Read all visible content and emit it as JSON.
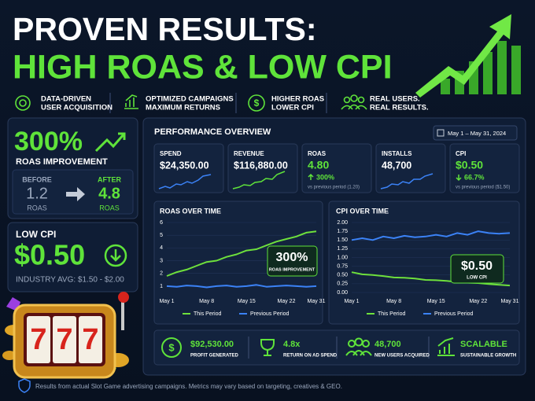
{
  "header": {
    "line1": "PROVEN RESULTS:",
    "line2": "HIGH ROAS & LOW CPI"
  },
  "features": [
    {
      "line1": "DATA-DRIVEN",
      "line2": "USER ACQUISITION"
    },
    {
      "line1": "OPTIMIZED CAMPAIGNS",
      "line2": "MAXIMUM RETURNS"
    },
    {
      "line1": "HIGHER ROAS",
      "line2": "LOWER CPI"
    },
    {
      "line1": "REAL USERS.",
      "line2": "REAL RESULTS."
    }
  ],
  "roas_card": {
    "value": "300%",
    "label": "ROAS IMPROVEMENT",
    "before_label": "BEFORE",
    "before_value": "1.2",
    "before_unit": "ROAS",
    "after_label": "AFTER",
    "after_value": "4.8",
    "after_unit": "ROAS"
  },
  "cpi_card": {
    "title": "LOW CPI",
    "value": "$0.50",
    "note": "INDUSTRY AVG: $1.50 - $2.00"
  },
  "dashboard": {
    "title": "PERFORMANCE OVERVIEW",
    "date_range": "May 1 – May 31, 2024",
    "kpis": [
      {
        "label": "SPEND",
        "value": "$24,350.00"
      },
      {
        "label": "REVENUE",
        "value": "$116,880.00"
      },
      {
        "label": "ROAS",
        "value": "4.80",
        "change": "300%",
        "note": "vs previous period (1.20)"
      },
      {
        "label": "INSTALLS",
        "value": "48,700"
      },
      {
        "label": "CPI",
        "value": "$0.50",
        "change": "66.7%",
        "note": "vs previous period ($1.50)"
      }
    ],
    "summary": [
      {
        "value": "$92,530.00",
        "label": "PROFIT GENERATED"
      },
      {
        "value": "4.8x",
        "label": "RETURN ON AD SPEND"
      },
      {
        "value": "48,700",
        "label": "NEW USERS ACQUIRED"
      },
      {
        "value": "SCALABLE",
        "label": "SUSTAINABLE GROWTH"
      }
    ]
  },
  "chart_data": [
    {
      "type": "line",
      "title": "ROAS OVER TIME",
      "categories": [
        "May 1",
        null,
        null,
        null,
        "May 8",
        null,
        null,
        null,
        "May 15",
        null,
        null,
        null,
        "May 22",
        null,
        null,
        "May 31"
      ],
      "series": [
        {
          "name": "This Period",
          "color": "#6ee03c",
          "values": [
            1.8,
            2.1,
            2.3,
            2.6,
            2.9,
            3.0,
            3.3,
            3.5,
            3.8,
            3.9,
            4.2,
            4.5,
            4.7,
            4.9,
            5.2,
            5.3
          ]
        },
        {
          "name": "Previous Period",
          "color": "#3b82f6",
          "values": [
            1.0,
            0.95,
            1.05,
            1.0,
            0.9,
            1.0,
            1.05,
            0.95,
            1.0,
            1.1,
            0.95,
            1.0,
            1.05,
            1.0,
            0.95,
            1.0
          ]
        }
      ],
      "ylim": [
        0.5,
        6
      ],
      "yticks": [
        1,
        2,
        3,
        4,
        5,
        6
      ],
      "grid": true,
      "annotation": {
        "value": "300%",
        "label": "ROAS IMPROVEMENT"
      }
    },
    {
      "type": "line",
      "title": "CPI OVER TIME",
      "categories": [
        "May 1",
        null,
        null,
        null,
        "May 8",
        null,
        null,
        null,
        "May 15",
        null,
        null,
        null,
        "May 22",
        null,
        null,
        "May 31"
      ],
      "series": [
        {
          "name": "This Period",
          "color": "#6ee03c",
          "values": [
            0.58,
            0.52,
            0.5,
            0.47,
            0.43,
            0.42,
            0.4,
            0.36,
            0.35,
            0.33,
            0.3,
            0.28,
            0.27,
            0.24,
            0.22,
            0.2
          ]
        },
        {
          "name": "Previous Period",
          "color": "#3b82f6",
          "values": [
            1.5,
            1.55,
            1.5,
            1.6,
            1.55,
            1.62,
            1.58,
            1.6,
            1.65,
            1.6,
            1.7,
            1.65,
            1.75,
            1.7,
            1.68,
            1.7
          ]
        }
      ],
      "ylim": [
        0,
        2
      ],
      "yticks": [
        {
          "value": 0,
          "label": "0.00"
        },
        {
          "value": 0.25,
          "label": "0.25"
        },
        {
          "value": 0.5,
          "label": "0.50"
        },
        {
          "value": 0.75,
          "label": "0.75"
        },
        {
          "value": 1,
          "label": "1.00"
        },
        {
          "value": 1.25,
          "label": "1.25"
        },
        {
          "value": 1.5,
          "label": "1.50"
        },
        {
          "value": 1.75,
          "label": "1.75"
        },
        {
          "value": 2,
          "label": "2.00"
        }
      ],
      "grid": true,
      "annotation": {
        "value": "$0.50",
        "label": "LOW CPI"
      }
    }
  ],
  "footer": "Results from actual Slot Game advertising campaigns. Metrics may vary based on targeting, creatives & GEO."
}
